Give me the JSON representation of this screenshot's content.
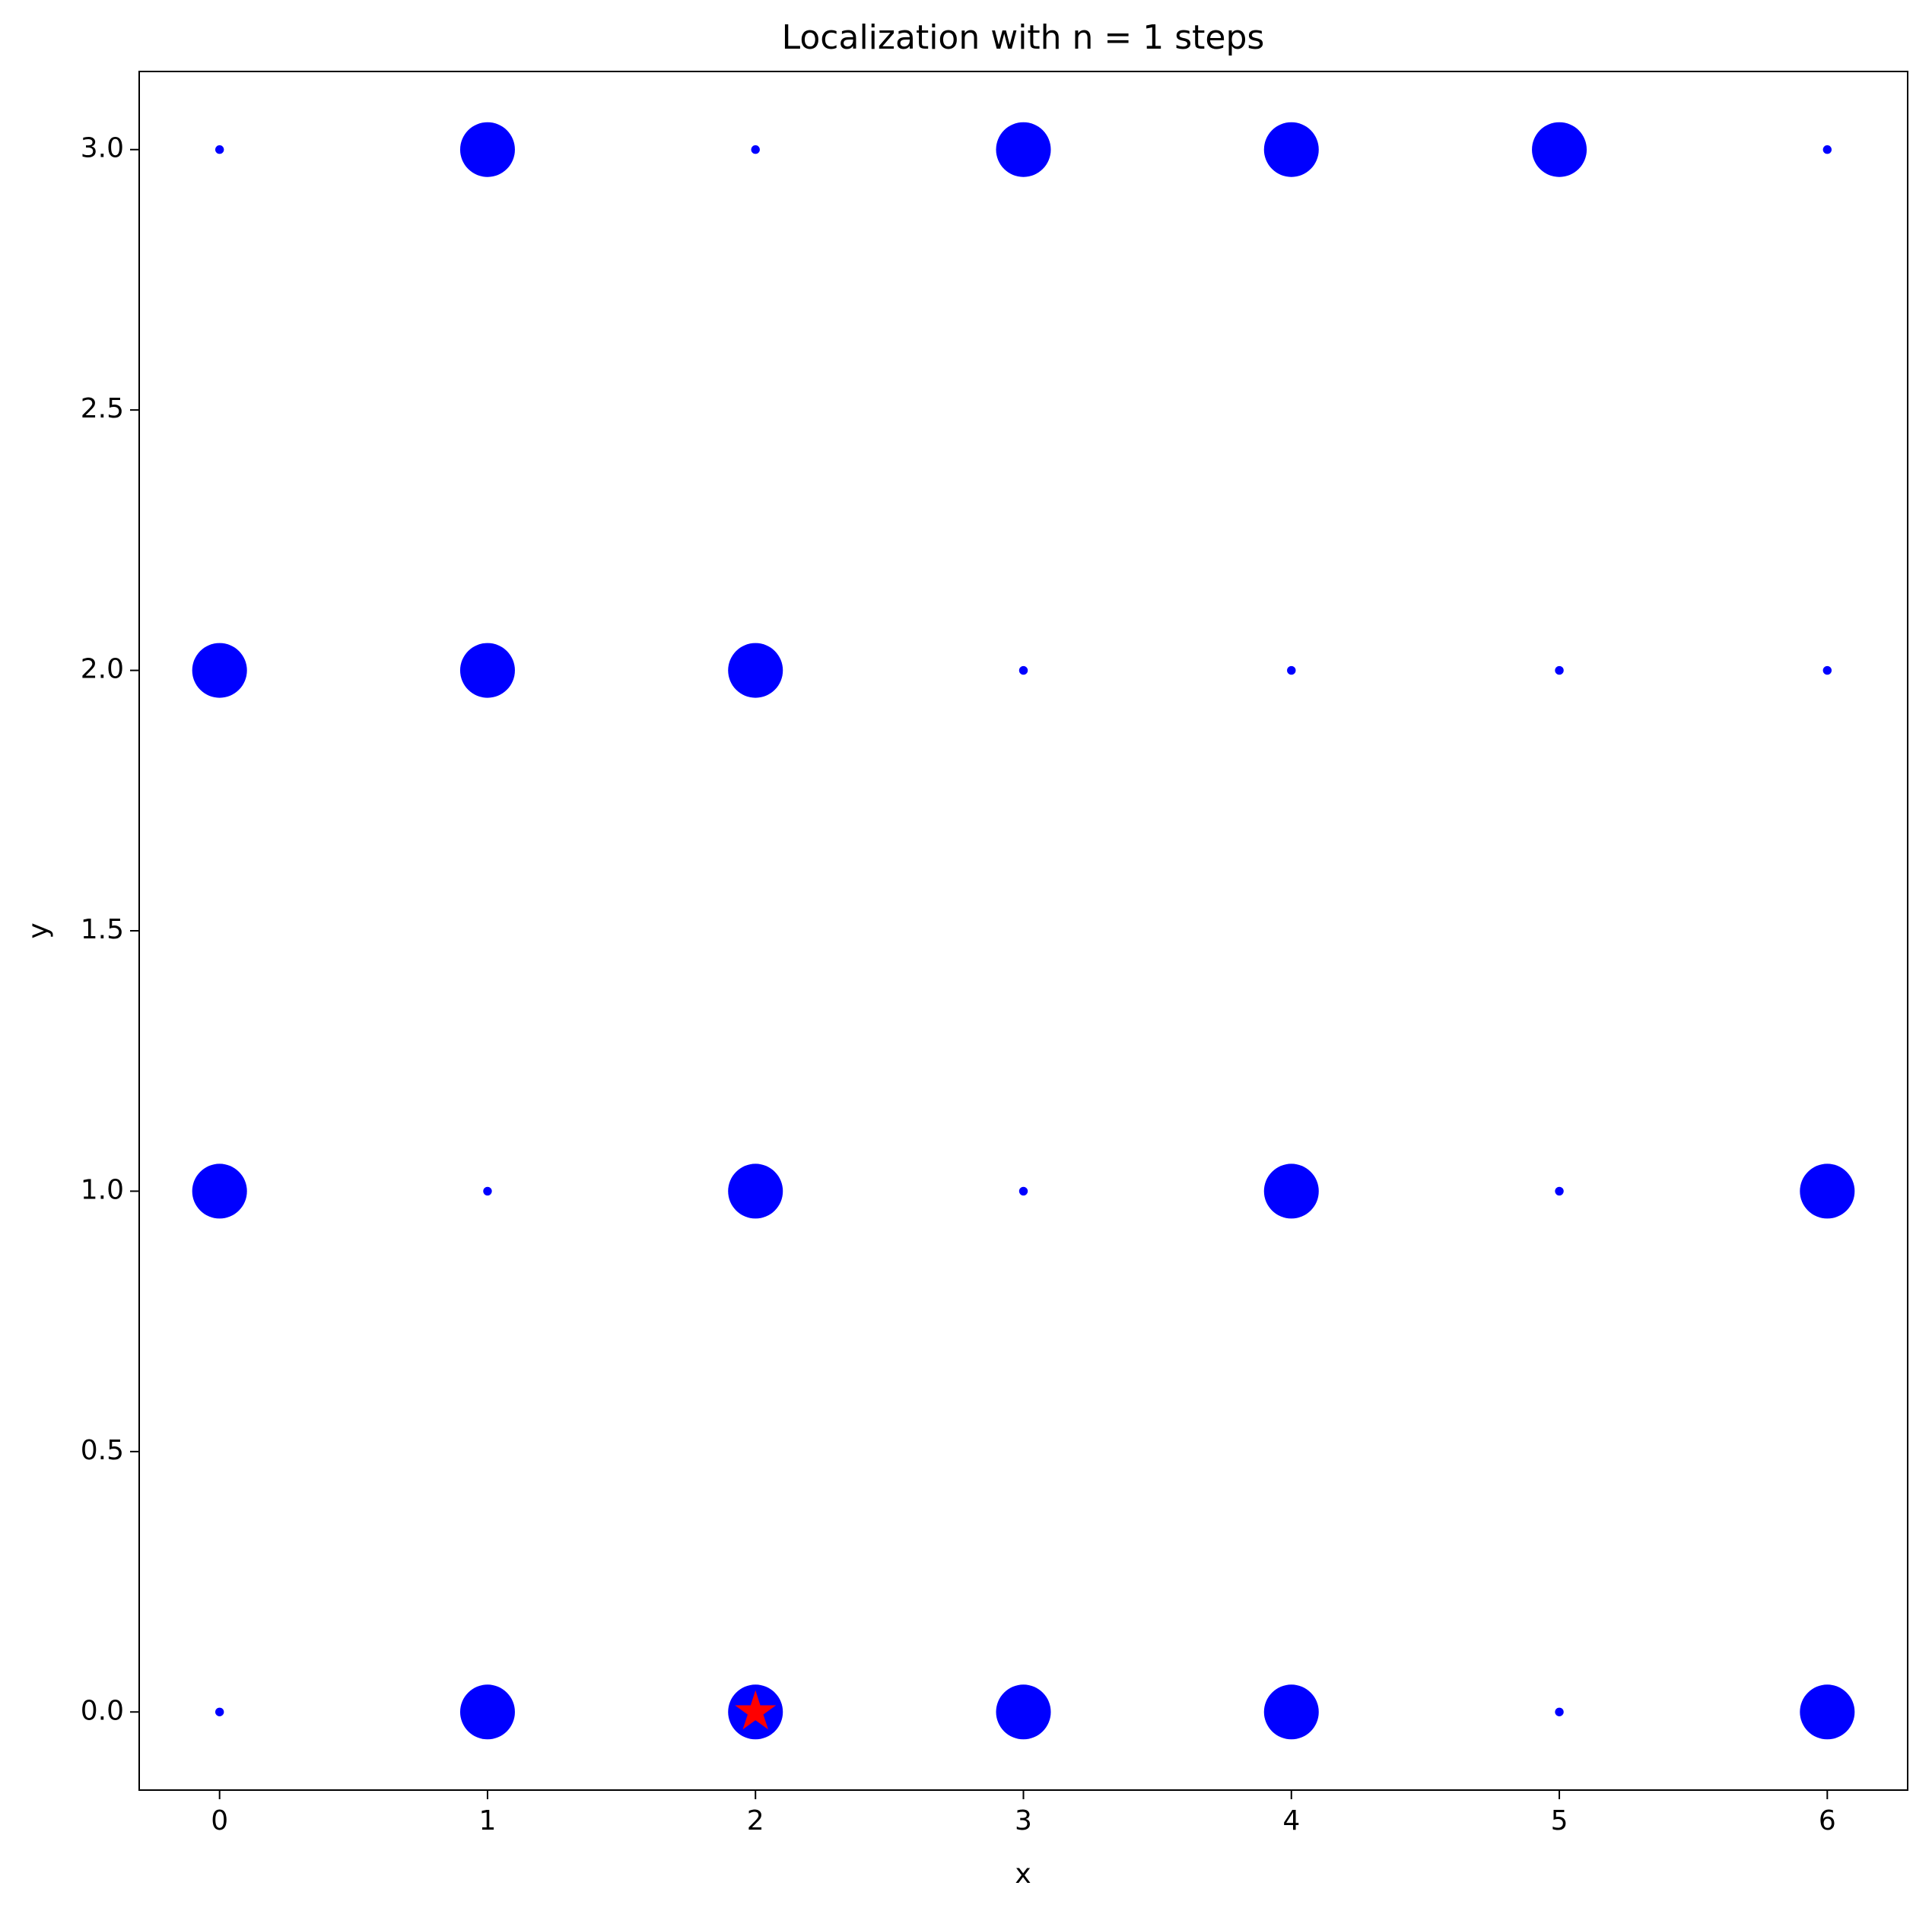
{
  "chart_data": {
    "type": "scatter",
    "title": "Localization with n = 1 steps",
    "x_label": "x",
    "y_label": "y",
    "xlim": [
      -0.3,
      6.3
    ],
    "ylim": [
      -0.15,
      3.15
    ],
    "xticks": [
      0,
      1,
      2,
      3,
      4,
      5,
      6
    ],
    "yticks": [
      {
        "value": 0,
        "label": "0.0"
      },
      {
        "value": 0.5,
        "label": "0.5"
      },
      {
        "value": 1,
        "label": "1.0"
      },
      {
        "value": 1.5,
        "label": "1.5"
      },
      {
        "value": 2,
        "label": "2.0"
      },
      {
        "value": 2.5,
        "label": "2.5"
      },
      {
        "value": 3,
        "label": "3.0"
      }
    ],
    "grid": false,
    "series": [
      {
        "color": "#0000ff",
        "marker": "circle",
        "x": [
          0,
          1,
          2,
          3,
          4,
          5,
          6,
          0,
          1,
          2,
          3,
          4,
          5,
          6,
          0,
          1,
          2,
          3,
          4,
          5,
          6,
          0,
          1,
          2,
          3,
          4,
          5,
          6
        ],
        "y": [
          3,
          3,
          3,
          3,
          3,
          3,
          3,
          2,
          2,
          2,
          2,
          2,
          2,
          2,
          1,
          1,
          1,
          1,
          1,
          1,
          1,
          0,
          0,
          0,
          0,
          0,
          0,
          0
        ],
        "sizes": [
          10,
          400,
          10,
          400,
          400,
          400,
          10,
          400,
          400,
          400,
          10,
          10,
          10,
          10,
          400,
          10,
          400,
          10,
          400,
          10,
          400,
          10,
          400,
          400,
          400,
          400,
          10,
          400
        ]
      },
      {
        "color": "#ff0000",
        "marker": "star",
        "x": [
          2
        ],
        "y": [
          0
        ],
        "sizes": [
          250
        ]
      }
    ]
  }
}
